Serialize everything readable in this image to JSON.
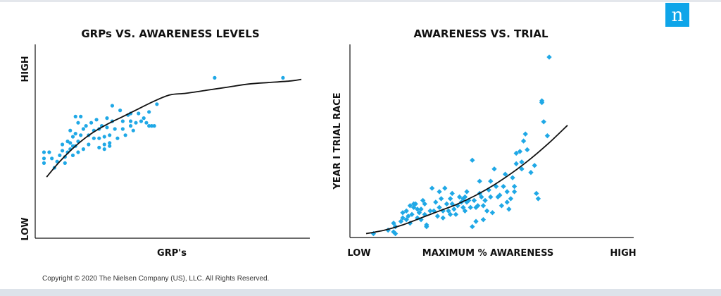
{
  "brand": {
    "accent": "#0ea5e9",
    "point_color": "#1fa8e6",
    "logo_letter": "n",
    "logo_icon": "nielsen-n-logo-icon"
  },
  "copyright": "Copyright © 2020 The Nielsen Company (US), LLC. All Rights Reserved.",
  "chart_data": [
    {
      "type": "scatter",
      "title": "GRPs VS. AWARENESS LEVELS",
      "xlabel": "GRP's",
      "ylabel_high": "HIGH",
      "ylabel_low": "LOW",
      "xlim": [
        0,
        100
      ],
      "ylim": [
        0,
        100
      ],
      "grid": false,
      "marker": "circle",
      "points": [
        [
          2,
          40
        ],
        [
          2,
          36
        ],
        [
          2,
          33
        ],
        [
          4,
          40
        ],
        [
          5,
          36
        ],
        [
          6,
          30
        ],
        [
          7,
          34
        ],
        [
          8,
          38
        ],
        [
          9,
          45
        ],
        [
          9,
          41
        ],
        [
          10,
          37
        ],
        [
          10,
          33
        ],
        [
          11,
          47
        ],
        [
          11,
          40
        ],
        [
          12,
          54
        ],
        [
          12,
          46
        ],
        [
          12,
          42
        ],
        [
          13,
          50
        ],
        [
          13,
          44
        ],
        [
          13,
          38
        ],
        [
          14,
          63
        ],
        [
          14,
          52
        ],
        [
          14,
          44
        ],
        [
          15,
          59
        ],
        [
          15,
          47
        ],
        [
          15,
          40
        ],
        [
          16,
          63
        ],
        [
          16,
          51
        ],
        [
          17,
          55
        ],
        [
          17,
          42
        ],
        [
          18,
          57
        ],
        [
          19,
          51
        ],
        [
          19,
          45
        ],
        [
          20,
          59
        ],
        [
          21,
          54
        ],
        [
          21,
          49
        ],
        [
          22,
          61
        ],
        [
          23,
          55
        ],
        [
          23,
          49
        ],
        [
          23,
          43
        ],
        [
          24,
          57
        ],
        [
          25,
          50
        ],
        [
          25,
          45
        ],
        [
          25,
          42
        ],
        [
          26,
          62
        ],
        [
          26,
          56
        ],
        [
          27,
          51
        ],
        [
          27,
          46
        ],
        [
          27,
          44
        ],
        [
          28,
          70
        ],
        [
          28,
          60
        ],
        [
          29,
          55
        ],
        [
          30,
          49
        ],
        [
          31,
          67
        ],
        [
          32,
          60
        ],
        [
          32,
          55
        ],
        [
          33,
          51
        ],
        [
          34,
          64
        ],
        [
          35,
          65
        ],
        [
          35,
          60
        ],
        [
          35,
          57
        ],
        [
          36,
          54
        ],
        [
          37,
          59
        ],
        [
          38,
          65
        ],
        [
          39,
          60
        ],
        [
          40,
          62
        ],
        [
          41,
          59
        ],
        [
          42,
          66
        ],
        [
          42,
          57
        ],
        [
          43,
          57
        ],
        [
          44,
          57
        ],
        [
          45,
          71
        ],
        [
          67,
          88
        ],
        [
          93,
          88
        ]
      ],
      "curve": [
        [
          3,
          24
        ],
        [
          8,
          34
        ],
        [
          14,
          44
        ],
        [
          20,
          52
        ],
        [
          26,
          58
        ],
        [
          32,
          63
        ],
        [
          38,
          68
        ],
        [
          44,
          73
        ],
        [
          50,
          77
        ],
        [
          56,
          78
        ],
        [
          64,
          80
        ],
        [
          72,
          82
        ],
        [
          80,
          84
        ],
        [
          88,
          85
        ],
        [
          96,
          86
        ],
        [
          100,
          87
        ]
      ]
    },
    {
      "type": "scatter",
      "title": "AWARENESS VS. TRIAL",
      "xlabel": "MAXIMUM % AWARENESS",
      "xlabel_low": "LOW",
      "xlabel_high": "HIGH",
      "ylabel": "YEAR I TRIAL RACE",
      "xlim": [
        0,
        100
      ],
      "ylim": [
        0,
        100
      ],
      "grid": false,
      "marker": "diamond",
      "points": [
        [
          4,
          1
        ],
        [
          12,
          3
        ],
        [
          15,
          2
        ],
        [
          16,
          1
        ],
        [
          16,
          5
        ],
        [
          15,
          7
        ],
        [
          19,
          8
        ],
        [
          20,
          10
        ],
        [
          20,
          13
        ],
        [
          22,
          14
        ],
        [
          22,
          9
        ],
        [
          23,
          11
        ],
        [
          24,
          17
        ],
        [
          24,
          7
        ],
        [
          25,
          12
        ],
        [
          26,
          16
        ],
        [
          26,
          18
        ],
        [
          27,
          18
        ],
        [
          28,
          15
        ],
        [
          28,
          10
        ],
        [
          29,
          13
        ],
        [
          30,
          9
        ],
        [
          30,
          15
        ],
        [
          31,
          20
        ],
        [
          32,
          18
        ],
        [
          32,
          12
        ],
        [
          33,
          6
        ],
        [
          33,
          5
        ],
        [
          35,
          14
        ],
        [
          36,
          27
        ],
        [
          37,
          14
        ],
        [
          38,
          19
        ],
        [
          39,
          11
        ],
        [
          40,
          25
        ],
        [
          40,
          16
        ],
        [
          41,
          21
        ],
        [
          42,
          14
        ],
        [
          42,
          10
        ],
        [
          43,
          27
        ],
        [
          44,
          18
        ],
        [
          45,
          14
        ],
        [
          46,
          21
        ],
        [
          46,
          12
        ],
        [
          47,
          18
        ],
        [
          47,
          24
        ],
        [
          48,
          15
        ],
        [
          49,
          12
        ],
        [
          50,
          17
        ],
        [
          51,
          22
        ],
        [
          52,
          19
        ],
        [
          53,
          21
        ],
        [
          53,
          16
        ],
        [
          54,
          14
        ],
        [
          54,
          22
        ],
        [
          55,
          19
        ],
        [
          55,
          25
        ],
        [
          56,
          20
        ],
        [
          57,
          16
        ],
        [
          58,
          43
        ],
        [
          58,
          5
        ],
        [
          59,
          20
        ],
        [
          60,
          16
        ],
        [
          60,
          8
        ],
        [
          61,
          17
        ],
        [
          62,
          31
        ],
        [
          62,
          24
        ],
        [
          63,
          22
        ],
        [
          64,
          17
        ],
        [
          64,
          9
        ],
        [
          65,
          20
        ],
        [
          66,
          14
        ],
        [
          67,
          26
        ],
        [
          68,
          31
        ],
        [
          68,
          22
        ],
        [
          69,
          13
        ],
        [
          70,
          38
        ],
        [
          71,
          28
        ],
        [
          72,
          22
        ],
        [
          73,
          23
        ],
        [
          74,
          17
        ],
        [
          75,
          28
        ],
        [
          76,
          35
        ],
        [
          77,
          25
        ],
        [
          77,
          19
        ],
        [
          78,
          15
        ],
        [
          79,
          21
        ],
        [
          80,
          33
        ],
        [
          81,
          25
        ],
        [
          81,
          28
        ],
        [
          82,
          41
        ],
        [
          82,
          47
        ],
        [
          84,
          48
        ],
        [
          85,
          42
        ],
        [
          85,
          38
        ],
        [
          86,
          54
        ],
        [
          87,
          58
        ],
        [
          88,
          49
        ],
        [
          90,
          36
        ],
        [
          92,
          40
        ],
        [
          93,
          24
        ],
        [
          94,
          21
        ],
        [
          96,
          76
        ],
        [
          96,
          77
        ],
        [
          97,
          65
        ],
        [
          99,
          57
        ],
        [
          100,
          102
        ]
      ],
      "curve": [
        [
          0,
          1
        ],
        [
          10,
          3
        ],
        [
          20,
          6
        ],
        [
          30,
          10
        ],
        [
          40,
          14
        ],
        [
          50,
          18
        ],
        [
          60,
          23
        ],
        [
          70,
          29
        ],
        [
          80,
          36
        ],
        [
          90,
          44
        ],
        [
          100,
          53
        ],
        [
          110,
          63
        ]
      ]
    }
  ]
}
